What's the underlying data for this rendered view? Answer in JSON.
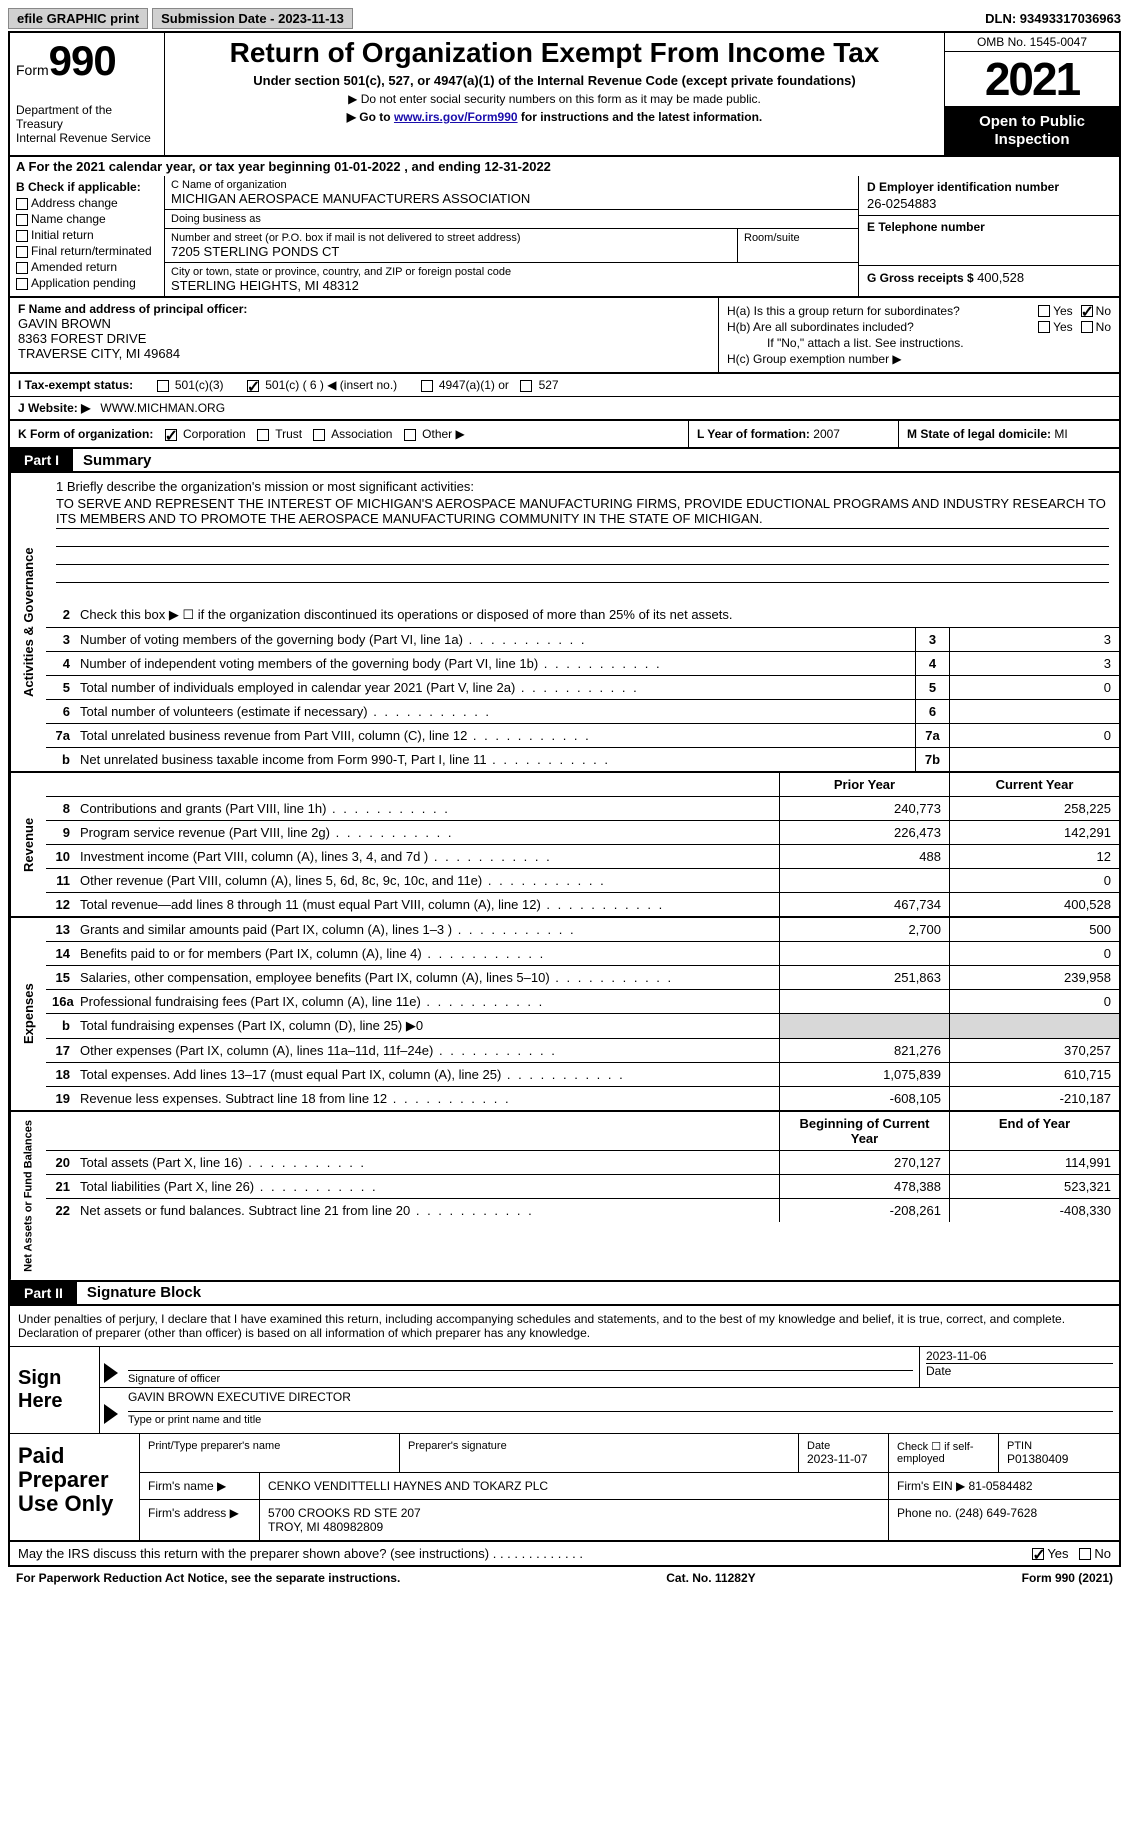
{
  "top": {
    "efile": "efile GRAPHIC print",
    "submission": "Submission Date - 2023-11-13",
    "dln": "DLN: 93493317036963"
  },
  "header": {
    "form_label": "Form",
    "form_num": "990",
    "dept": "Department of the Treasury",
    "irs": "Internal Revenue Service",
    "title": "Return of Organization Exempt From Income Tax",
    "sub1": "Under section 501(c), 527, or 4947(a)(1) of the Internal Revenue Code (except private foundations)",
    "sub2": "▶ Do not enter social security numbers on this form as it may be made public.",
    "sub3_pre": "▶ Go to ",
    "sub3_link": "www.irs.gov/Form990",
    "sub3_post": " for instructions and the latest information.",
    "omb": "OMB No. 1545-0047",
    "year": "2021",
    "open": "Open to Public Inspection"
  },
  "rowA": "A For the 2021 calendar year, or tax year beginning 01-01-2022   , and ending 12-31-2022",
  "colB": {
    "hdr": "B Check if applicable:",
    "items": [
      "Address change",
      "Name change",
      "Initial return",
      "Final return/terminated",
      "Amended return",
      "Application pending"
    ]
  },
  "colC": {
    "name_lbl": "C Name of organization",
    "name": "MICHIGAN AEROSPACE MANUFACTURERS ASSOCIATION",
    "dba_lbl": "Doing business as",
    "dba": "",
    "addr_lbl": "Number and street (or P.O. box if mail is not delivered to street address)",
    "addr": "7205 STERLING PONDS CT",
    "room_lbl": "Room/suite",
    "city_lbl": "City or town, state or province, country, and ZIP or foreign postal code",
    "city": "STERLING HEIGHTS, MI  48312"
  },
  "colD": {
    "ein_lbl": "D Employer identification number",
    "ein": "26-0254883",
    "tel_lbl": "E Telephone number",
    "tel": "",
    "gross_lbl": "G Gross receipts $",
    "gross": "400,528"
  },
  "colF": {
    "lbl": "F Name and address of principal officer:",
    "name": "GAVIN BROWN",
    "addr1": "8363 FOREST DRIVE",
    "addr2": "TRAVERSE CITY, MI  49684"
  },
  "colH": {
    "ha": "H(a)  Is this a group return for subordinates?",
    "hb": "H(b)  Are all subordinates included?",
    "hb_note": "If \"No,\" attach a list. See instructions.",
    "hc": "H(c)  Group exemption number ▶"
  },
  "rowI": {
    "lbl": "I   Tax-exempt status:",
    "opt1": "501(c)(3)",
    "opt2": "501(c) ( 6 ) ◀ (insert no.)",
    "opt3": "4947(a)(1) or",
    "opt4": "527"
  },
  "rowJ": {
    "lbl": "J   Website: ▶",
    "val": "WWW.MICHMAN.ORG"
  },
  "rowK": {
    "lbl": "K Form of organization:",
    "opts": [
      "Corporation",
      "Trust",
      "Association",
      "Other ▶"
    ]
  },
  "rowL": {
    "lbl": "L Year of formation:",
    "val": "2007"
  },
  "rowM": {
    "lbl": "M State of legal domicile:",
    "val": "MI"
  },
  "part1": {
    "hdr": "Part I",
    "title": "Summary"
  },
  "mission": {
    "line1_lbl": "1   Briefly describe the organization's mission or most significant activities:",
    "text": "TO SERVE AND REPRESENT THE INTEREST OF MICHIGAN'S AEROSPACE MANUFACTURING FIRMS, PROVIDE EDUCTIONAL PROGRAMS AND INDUSTRY RESEARCH TO ITS MEMBERS AND TO PROMOTE THE AEROSPACE MANUFACTURING COMMUNITY IN THE STATE OF MICHIGAN."
  },
  "activities": {
    "vtab": "Activities & Governance",
    "rows": [
      {
        "n": "2",
        "t": "Check this box ▶ ☐  if the organization discontinued its operations or disposed of more than 25% of its net assets."
      },
      {
        "n": "3",
        "t": "Number of voting members of the governing body (Part VI, line 1a)",
        "b": "3",
        "v": "3"
      },
      {
        "n": "4",
        "t": "Number of independent voting members of the governing body (Part VI, line 1b)",
        "b": "4",
        "v": "3"
      },
      {
        "n": "5",
        "t": "Total number of individuals employed in calendar year 2021 (Part V, line 2a)",
        "b": "5",
        "v": "0"
      },
      {
        "n": "6",
        "t": "Total number of volunteers (estimate if necessary)",
        "b": "6",
        "v": ""
      },
      {
        "n": "7a",
        "t": "Total unrelated business revenue from Part VIII, column (C), line 12",
        "b": "7a",
        "v": "0"
      },
      {
        "n": "b",
        "t": "Net unrelated business taxable income from Form 990-T, Part I, line 11",
        "b": "7b",
        "v": ""
      }
    ]
  },
  "revenue": {
    "vtab": "Revenue",
    "col_prior": "Prior Year",
    "col_current": "Current Year",
    "rows": [
      {
        "n": "8",
        "t": "Contributions and grants (Part VIII, line 1h)",
        "p": "240,773",
        "c": "258,225"
      },
      {
        "n": "9",
        "t": "Program service revenue (Part VIII, line 2g)",
        "p": "226,473",
        "c": "142,291"
      },
      {
        "n": "10",
        "t": "Investment income (Part VIII, column (A), lines 3, 4, and 7d )",
        "p": "488",
        "c": "12"
      },
      {
        "n": "11",
        "t": "Other revenue (Part VIII, column (A), lines 5, 6d, 8c, 9c, 10c, and 11e)",
        "p": "",
        "c": "0"
      },
      {
        "n": "12",
        "t": "Total revenue—add lines 8 through 11 (must equal Part VIII, column (A), line 12)",
        "p": "467,734",
        "c": "400,528"
      }
    ]
  },
  "expenses": {
    "vtab": "Expenses",
    "rows": [
      {
        "n": "13",
        "t": "Grants and similar amounts paid (Part IX, column (A), lines 1–3 )",
        "p": "2,700",
        "c": "500"
      },
      {
        "n": "14",
        "t": "Benefits paid to or for members (Part IX, column (A), line 4)",
        "p": "",
        "c": "0"
      },
      {
        "n": "15",
        "t": "Salaries, other compensation, employee benefits (Part IX, column (A), lines 5–10)",
        "p": "251,863",
        "c": "239,958"
      },
      {
        "n": "16a",
        "t": "Professional fundraising fees (Part IX, column (A), line 11e)",
        "p": "",
        "c": "0"
      },
      {
        "n": "b",
        "t": "Total fundraising expenses (Part IX, column (D), line 25) ▶0",
        "p": "",
        "c": "",
        "gray": true
      },
      {
        "n": "17",
        "t": "Other expenses (Part IX, column (A), lines 11a–11d, 11f–24e)",
        "p": "821,276",
        "c": "370,257"
      },
      {
        "n": "18",
        "t": "Total expenses. Add lines 13–17 (must equal Part IX, column (A), line 25)",
        "p": "1,075,839",
        "c": "610,715"
      },
      {
        "n": "19",
        "t": "Revenue less expenses. Subtract line 18 from line 12",
        "p": "-608,105",
        "c": "-210,187"
      }
    ]
  },
  "netassets": {
    "vtab": "Net Assets or Fund Balances",
    "col_begin": "Beginning of Current Year",
    "col_end": "End of Year",
    "rows": [
      {
        "n": "20",
        "t": "Total assets (Part X, line 16)",
        "p": "270,127",
        "c": "114,991"
      },
      {
        "n": "21",
        "t": "Total liabilities (Part X, line 26)",
        "p": "478,388",
        "c": "523,321"
      },
      {
        "n": "22",
        "t": "Net assets or fund balances. Subtract line 21 from line 20",
        "p": "-208,261",
        "c": "-408,330"
      }
    ]
  },
  "part2": {
    "hdr": "Part II",
    "title": "Signature Block"
  },
  "sig": {
    "intro": "Under penalties of perjury, I declare that I have examined this return, including accompanying schedules and statements, and to the best of my knowledge and belief, it is true, correct, and complete. Declaration of preparer (other than officer) is based on all information of which preparer has any knowledge.",
    "sign_here": "Sign Here",
    "sig_officer": "Signature of officer",
    "sig_date": "2023-11-06",
    "date_lbl": "Date",
    "name": "GAVIN BROWN  EXECUTIVE DIRECTOR",
    "name_lbl": "Type or print name and title"
  },
  "paid": {
    "hdr": "Paid Preparer Use Only",
    "r1": {
      "c1_lbl": "Print/Type preparer's name",
      "c1": "",
      "c2_lbl": "Preparer's signature",
      "c2": "",
      "c3_lbl": "Date",
      "c3": "2023-11-07",
      "c4_lbl": "Check ☐ if self-employed",
      "c5_lbl": "PTIN",
      "c5": "P01380409"
    },
    "r2": {
      "lbl": "Firm's name      ▶",
      "val": "CENKO VENDITTELLI HAYNES AND TOKARZ PLC",
      "ein_lbl": "Firm's EIN ▶",
      "ein": "81-0584482"
    },
    "r3": {
      "lbl": "Firm's address ▶",
      "val1": "5700 CROOKS RD STE 207",
      "val2": "TROY, MI  480982809",
      "ph_lbl": "Phone no.",
      "ph": "(248) 649-7628"
    }
  },
  "discuss": "May the IRS discuss this return with the preparer shown above? (see instructions)",
  "footer": {
    "left": "For Paperwork Reduction Act Notice, see the separate instructions.",
    "center": "Cat. No. 11282Y",
    "right": "Form 990 (2021)"
  }
}
